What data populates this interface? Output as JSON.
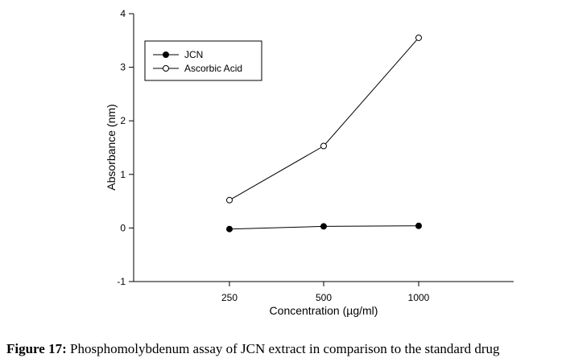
{
  "chart_data": {
    "type": "line",
    "categories": [
      "250",
      "500",
      "1000"
    ],
    "series": [
      {
        "name": "JCN",
        "values": [
          -0.02,
          0.03,
          0.04
        ],
        "marker": "filled-circle",
        "color": "#000000"
      },
      {
        "name": "Ascorbic Acid",
        "values": [
          0.52,
          1.53,
          3.55
        ],
        "marker": "open-circle",
        "color": "#000000"
      }
    ],
    "title": "",
    "xlabel": "Concentration (µg/ml)",
    "ylabel": "Absorbance (nm)",
    "ylim": [
      -1,
      4
    ],
    "yticks": [
      "-1",
      "0",
      "1",
      "2",
      "3",
      "4"
    ],
    "grid": false,
    "legend_position": "top-left"
  },
  "caption": {
    "label": "Figure 17:",
    "text": " Phosphomolybdenum assay of JCN extract in comparison to the standard drug"
  }
}
